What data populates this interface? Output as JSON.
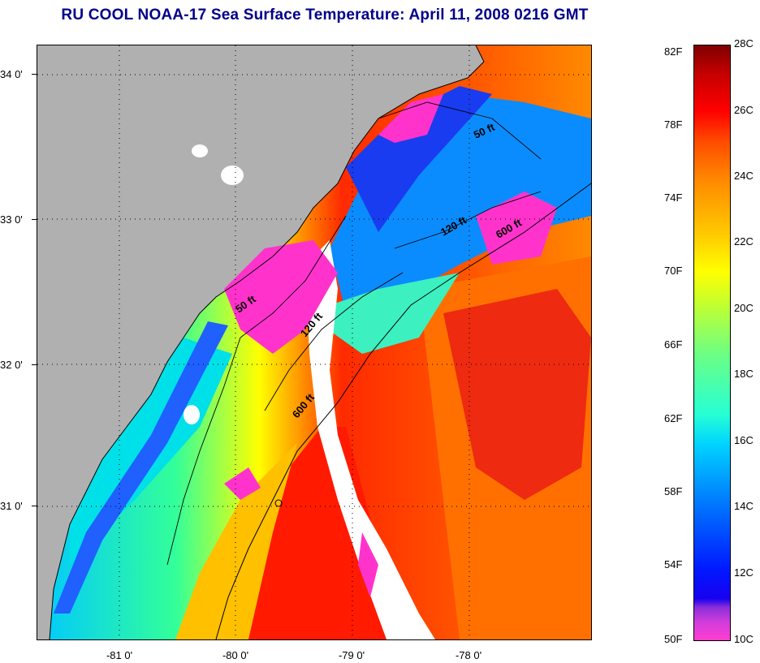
{
  "title": "RU COOL  NOAA-17  Sea Surface Temperature:  April 11, 2008 0216 GMT",
  "map": {
    "lat_labels": [
      "34 0'",
      "33 0'",
      "32 0'",
      "31 0'"
    ],
    "lon_labels": [
      "-81 0'",
      "-80 0'",
      "-79 0'",
      "-78 0'"
    ],
    "contour_labels": [
      "50 ft",
      "120 ft",
      "600 ft",
      "50 ft",
      "120 ft",
      "600 ft"
    ],
    "land_color": "#b0b0b0",
    "cloud_color": "#ffffff"
  },
  "colorbar": {
    "fahrenheit": [
      "82F",
      "78F",
      "74F",
      "70F",
      "66F",
      "62F",
      "58F",
      "54F",
      "50F"
    ],
    "celsius": [
      "28C",
      "26C",
      "24C",
      "22C",
      "20C",
      "18C",
      "16C",
      "14C",
      "12C",
      "10C"
    ]
  }
}
